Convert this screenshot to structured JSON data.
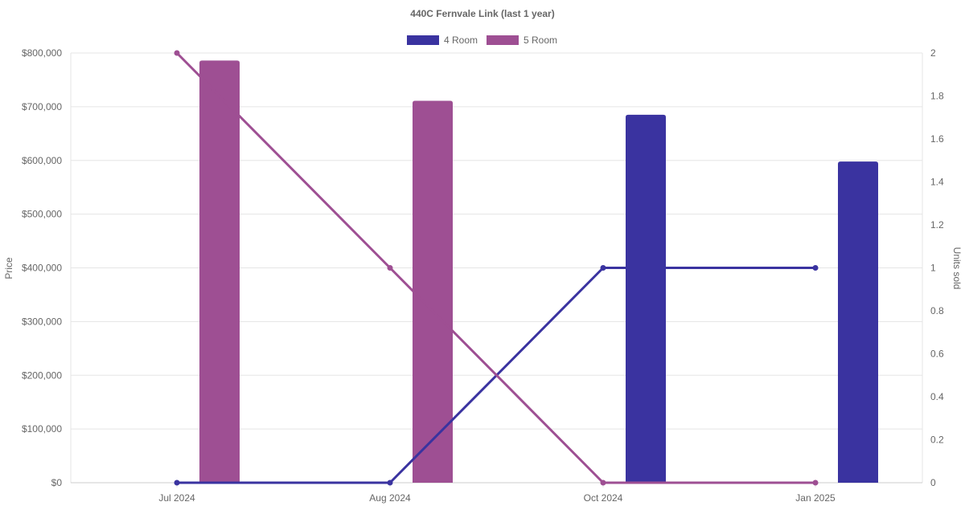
{
  "chart_data": {
    "type": "bar",
    "title": "440C Fernvale Link (last 1 year)",
    "categories": [
      "Jul 2024",
      "Aug 2024",
      "Oct 2024",
      "Jan 2025"
    ],
    "ylabel_left": "Price",
    "ylabel_right": "Units sold",
    "ylim_left": [
      0,
      800000
    ],
    "ylim_right": [
      0,
      2
    ],
    "left_ticks": [
      "$0",
      "$100,000",
      "$200,000",
      "$300,000",
      "$400,000",
      "$500,000",
      "$600,000",
      "$700,000",
      "$800,000"
    ],
    "right_ticks": [
      "0",
      "0.2",
      "0.4",
      "0.6",
      "0.8",
      "1",
      "1.2",
      "1.4",
      "1.6",
      "1.8",
      "2"
    ],
    "legend_position": "top",
    "grid": true,
    "series": [
      {
        "name": "4 Room",
        "color": "#3a33a0",
        "price": [
          null,
          null,
          685000,
          598000
        ],
        "units": [
          0,
          0,
          1,
          1
        ]
      },
      {
        "name": "5 Room",
        "color": "#9e4f93",
        "price": [
          786000,
          711000,
          null,
          null
        ],
        "units": [
          2,
          1,
          0,
          0
        ]
      }
    ]
  }
}
